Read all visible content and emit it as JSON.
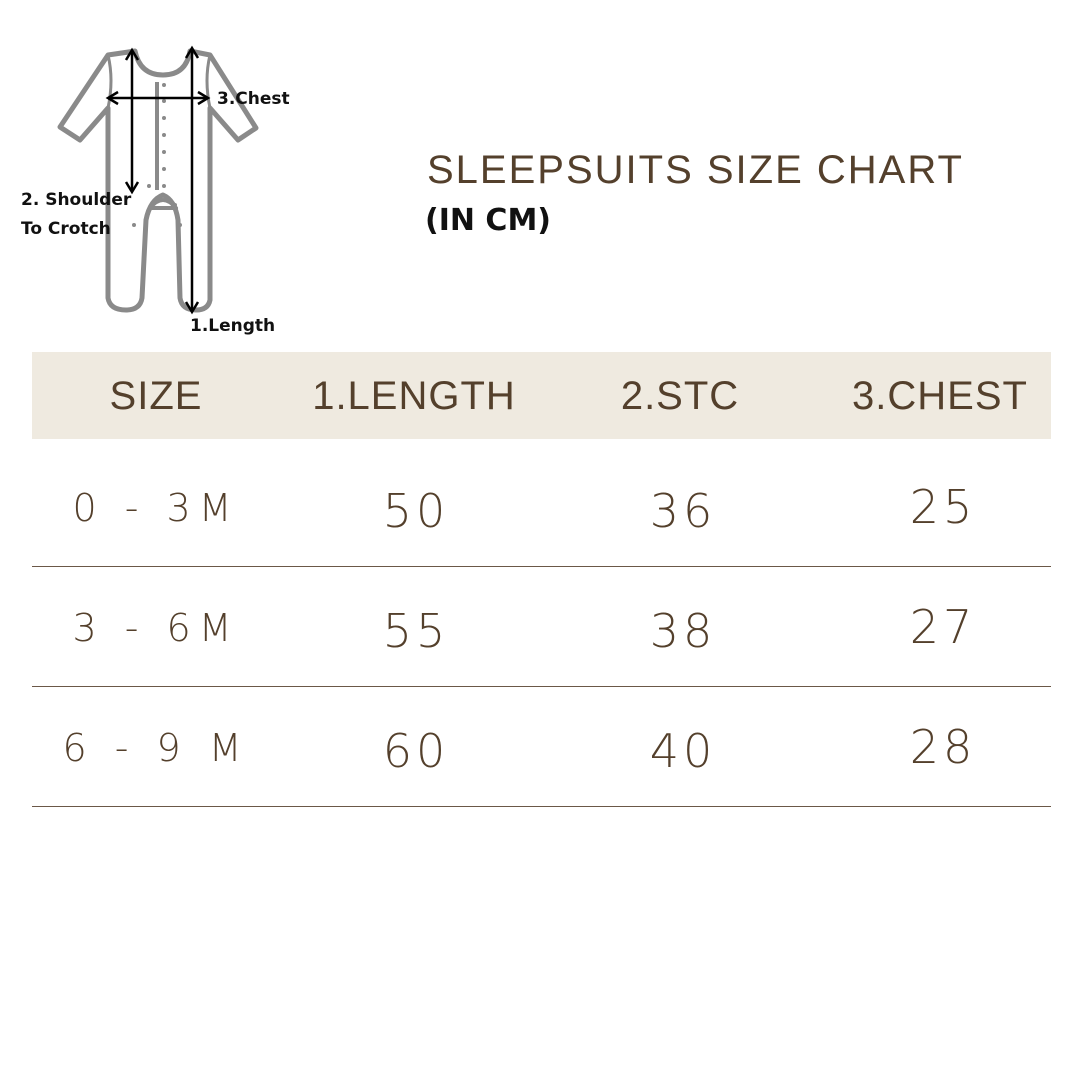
{
  "diagram": {
    "labels": {
      "chest": "3.Chest",
      "stc_line1": "2. Shoulder",
      "stc_line2": "To Crotch",
      "length": "1.Length"
    },
    "outline_color": "#8a8a8a"
  },
  "title": "SLEEPSUITS SIZE CHART",
  "subtitle": "(IN CM)",
  "table": {
    "headers": [
      "SIZE",
      "1.LENGTH",
      "2.STC",
      "3.CHEST"
    ],
    "rows": [
      [
        "0 - 3M",
        "50",
        "36",
        "25"
      ],
      [
        "3 - 6M",
        "55",
        "38",
        "27"
      ],
      [
        "6 - 9 M",
        "60",
        "40",
        "28"
      ]
    ]
  },
  "colors": {
    "header_bg": "#efeae0",
    "text": "#54402c"
  }
}
